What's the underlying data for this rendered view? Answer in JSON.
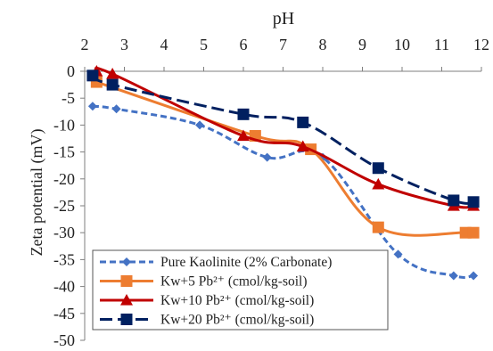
{
  "chart_data": {
    "type": "line",
    "xlabel": "pH",
    "ylabel": "Zeta potential (mV)",
    "x_ticks": [
      "2",
      "3",
      "4",
      "5",
      "6",
      "7",
      "8",
      "9",
      "10",
      "11",
      "12"
    ],
    "y_ticks": [
      "0",
      "-5",
      "-10",
      "-15",
      "-20",
      "-25",
      "-30",
      "-35",
      "-40",
      "-45",
      "-50"
    ],
    "xlim": [
      2,
      12
    ],
    "ylim": [
      -50,
      0
    ],
    "x_axis_position": "top",
    "grid": false,
    "legend_position": "bottom-left",
    "series": [
      {
        "name": "Pure Kaolinite (2% Carbonate)",
        "color": "#4472C4",
        "marker": "diamond",
        "line_style": "dashed",
        "x": [
          2.2,
          2.8,
          4.9,
          6.6,
          8.0,
          9.9,
          11.3,
          11.8
        ],
        "y": [
          -6.5,
          -7,
          -10,
          -16,
          -16,
          -34,
          -38,
          -38
        ]
      },
      {
        "name": "Kw+5 Pb²⁺ (cmol/kg-soil)",
        "color": "#ED7D31",
        "marker": "square",
        "line_style": "solid",
        "x": [
          2.3,
          6.3,
          7.7,
          9.4,
          11.6,
          11.8
        ],
        "y": [
          -2,
          -12,
          -14.5,
          -29,
          -30,
          -30
        ]
      },
      {
        "name": "Kw+10 Pb²⁺ (cmol/kg-soil)",
        "color": "#C00000",
        "marker": "triangle",
        "line_style": "solid",
        "x": [
          2.3,
          2.7,
          6.0,
          7.5,
          9.4,
          11.3,
          11.8
        ],
        "y": [
          0,
          -0.5,
          -12,
          -14,
          -21,
          -25,
          -25
        ]
      },
      {
        "name": "Kw+20 Pb²⁺ (cmol/kg-soil)",
        "color": "#002060",
        "marker": "square",
        "line_style": "longdash",
        "x": [
          2.2,
          2.7,
          6.0,
          7.5,
          9.4,
          11.3,
          11.8
        ],
        "y": [
          -0.8,
          -2.5,
          -8,
          -9.5,
          -18,
          -24,
          -24.3
        ]
      }
    ]
  }
}
